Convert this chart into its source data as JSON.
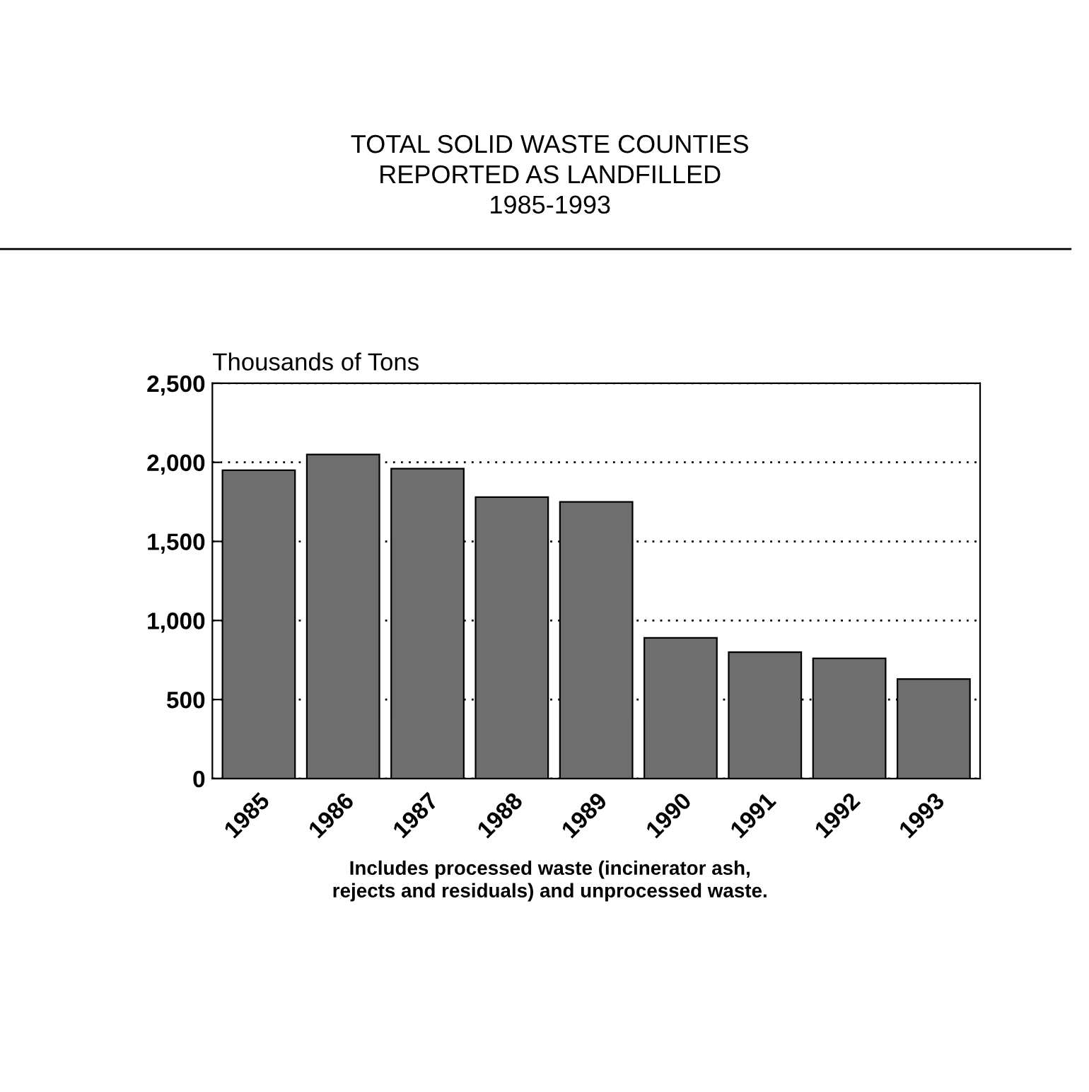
{
  "chart_data": {
    "type": "bar",
    "title": "TOTAL SOLID WASTE COUNTIES\nREPORTED AS LANDFILLED\n1985-1993",
    "ylabel": "Thousands of Tons",
    "categories": [
      "1985",
      "1986",
      "1987",
      "1988",
      "1989",
      "1990",
      "1991",
      "1992",
      "1993"
    ],
    "values": [
      1950,
      2050,
      1960,
      1780,
      1750,
      890,
      800,
      760,
      630
    ],
    "color": "#6e6e6e",
    "ylim": [
      0,
      2500
    ],
    "yticks": [
      {
        "value": 0,
        "label": "0"
      },
      {
        "value": 500,
        "label": "500"
      },
      {
        "value": 1000,
        "label": "1,000"
      },
      {
        "value": 1500,
        "label": "1,500"
      },
      {
        "value": 2000,
        "label": "2,000"
      },
      {
        "value": 2500,
        "label": "2,500"
      }
    ],
    "grid": "y",
    "annotations": [
      "Includes processed waste (incinerator ash,\nrejects and residuals) and unprocessed waste."
    ]
  }
}
